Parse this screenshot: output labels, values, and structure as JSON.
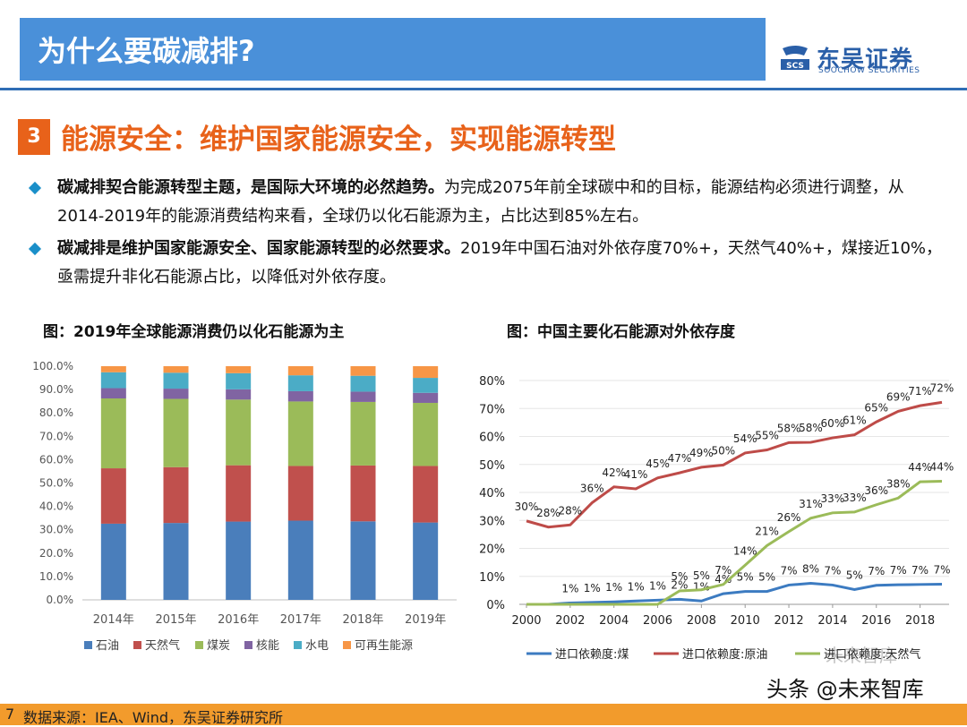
{
  "header": {
    "title": "为什么要碳减排?"
  },
  "logo": {
    "name_cn": "东吴证券",
    "name_en": "SOOCHOW SECURITIES",
    "mark_text": "SCS"
  },
  "section": {
    "number": "3",
    "title": "能源安全：维护国家能源安全，实现能源转型"
  },
  "bullets": [
    {
      "bold": "碳减排契合能源转型主题，是国际大环境的必然趋势。",
      "text": "为完成2075年前全球碳中和的目标，能源结构必须进行调整，从2014-2019年的能源消费结构来看，全球仍以化石能源为主，占比达到85%左右。"
    },
    {
      "bold": "碳减排是维护国家能源安全、国家能源转型的必然要求。",
      "text": "2019年中国石油对外依存度70%+，天然气40%+，煤接近10%，亟需提升非化石能源占比，以降低对外依存度。"
    }
  ],
  "chart_data": [
    {
      "type": "bar",
      "stacked": true,
      "title": "图：2019年全球能源消费仍以化石能源为主",
      "categories": [
        "2014年",
        "2015年",
        "2016年",
        "2017年",
        "2018年",
        "2019年"
      ],
      "series": [
        {
          "name": "石油",
          "color": "#4a7ebb",
          "values": [
            32.6,
            32.9,
            33.5,
            33.9,
            33.6,
            33.1
          ]
        },
        {
          "name": "天然气",
          "color": "#c0504d",
          "values": [
            23.7,
            23.9,
            24.1,
            23.4,
            23.9,
            24.2
          ]
        },
        {
          "name": "煤炭",
          "color": "#9bbb59",
          "values": [
            29.9,
            29.2,
            28.1,
            27.6,
            27.2,
            27.0
          ]
        },
        {
          "name": "核能",
          "color": "#8064a2",
          "values": [
            4.4,
            4.4,
            4.4,
            4.4,
            4.4,
            4.3
          ]
        },
        {
          "name": "水电",
          "color": "#4bacc6",
          "values": [
            6.8,
            6.8,
            6.9,
            6.8,
            6.8,
            6.4
          ]
        },
        {
          "name": "可再生能源",
          "color": "#f79646",
          "values": [
            2.6,
            2.8,
            3.0,
            3.9,
            4.1,
            5.0
          ]
        }
      ],
      "yticks": [
        "0.0%",
        "10.0%",
        "20.0%",
        "30.0%",
        "40.0%",
        "50.0%",
        "60.0%",
        "70.0%",
        "80.0%",
        "90.0%",
        "100.0%"
      ],
      "ylim": [
        0,
        100
      ],
      "legend": "bottom"
    },
    {
      "type": "line",
      "title": "图：中国主要化石能源对外依存度",
      "x": [
        2000,
        2001,
        2002,
        2003,
        2004,
        2005,
        2006,
        2007,
        2008,
        2009,
        2010,
        2011,
        2012,
        2013,
        2014,
        2015,
        2016,
        2017,
        2018,
        2019
      ],
      "xticks": [
        "2000",
        "2002",
        "2004",
        "2006",
        "2008",
        "2010",
        "2012",
        "2014",
        "2016",
        "2018"
      ],
      "yticks": [
        "0%",
        "10%",
        "20%",
        "30%",
        "40%",
        "50%",
        "60%",
        "70%",
        "80%"
      ],
      "ylim": [
        0,
        80
      ],
      "series": [
        {
          "name": "进口依赖度:煤",
          "color": "#3c7bc1",
          "values": [
            0,
            0,
            0.5,
            0.7,
            0.9,
            1.2,
            1.5,
            1.8,
            1.2,
            3.8,
            4.6,
            4.6,
            6.9,
            7.5,
            6.9,
            5.3,
            6.8,
            7.0,
            7.1,
            7.2
          ],
          "labels": [
            "",
            "",
            "1%",
            "1%",
            "1%",
            "1%",
            "1%",
            "2%",
            "1%",
            "4%",
            "5%",
            "5%",
            "7%",
            "8%",
            "7%",
            "5%",
            "7%",
            "7%",
            "7%",
            "7%"
          ]
        },
        {
          "name": "进口依赖度:原油",
          "color": "#be4b48",
          "values": [
            29.8,
            27.6,
            28.4,
            36.3,
            42.0,
            41.3,
            45.2,
            47.0,
            49.0,
            49.8,
            54.1,
            55.2,
            57.8,
            57.9,
            59.5,
            60.6,
            65.2,
            69.0,
            71.0,
            72.2
          ],
          "labels": [
            "30%",
            "28%",
            "28%",
            "36%",
            "42%",
            "41%",
            "45%",
            "47%",
            "49%",
            "50%",
            "54%",
            "55%",
            "58%",
            "58%",
            "60%",
            "61%",
            "65%",
            "69%",
            "71%",
            "72%"
          ]
        },
        {
          "name": "进口依赖度:天然气",
          "color": "#9bbb59",
          "values": [
            0,
            0,
            0,
            0,
            0,
            0,
            0,
            4.8,
            5.2,
            7.1,
            14.0,
            21.0,
            26.0,
            30.8,
            32.7,
            33.0,
            35.6,
            38.0,
            43.8,
            44.0
          ],
          "labels": [
            "",
            "",
            "",
            "",
            "",
            "",
            "",
            "5%",
            "5%",
            "7%",
            "14%",
            "21%",
            "26%",
            "31%",
            "33%",
            "33%",
            "36%",
            "38%",
            "44%",
            "44%"
          ]
        }
      ],
      "legend": "bottom"
    }
  ],
  "footer": {
    "page_number": "7",
    "source": "数据来源：IEA、Wind，东吴证券研究所"
  },
  "watermark": {
    "text": "头条 @未来智库",
    "faded_text": "未来智库"
  }
}
